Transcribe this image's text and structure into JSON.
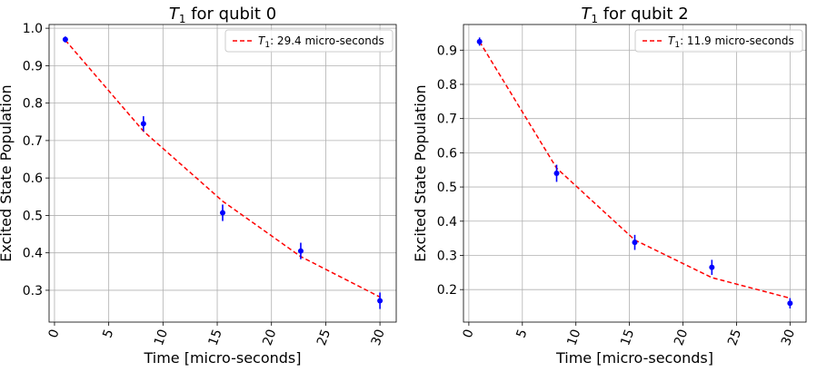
{
  "figure": {
    "background": "#ffffff"
  },
  "chart_data": [
    {
      "type": "scatter",
      "title_symbol": "T",
      "title_subscript": "1",
      "title_rest": " for qubit 0",
      "xlabel": "Time [micro-seconds]",
      "ylabel": "Excited State Population",
      "xlim": [
        -0.5,
        31.5
      ],
      "ylim": [
        0.215,
        1.01
      ],
      "xticks": [
        0,
        5,
        10,
        15,
        20,
        25,
        30
      ],
      "yticks": [
        0.3,
        0.4,
        0.5,
        0.6,
        0.7,
        0.8,
        0.9,
        1.0
      ],
      "ytick_labels": [
        "0.3",
        "0.4",
        "0.5",
        "0.6",
        "0.7",
        "0.8",
        "0.9",
        "1.0"
      ],
      "grid": true,
      "legend_position": "top-right",
      "series": [
        {
          "kind": "errorbar",
          "color": "#0000ff",
          "x": [
            1.0,
            8.2,
            15.5,
            22.7,
            30.0
          ],
          "y": [
            0.97,
            0.745,
            0.507,
            0.405,
            0.272
          ],
          "yerr": [
            0.008,
            0.02,
            0.022,
            0.022,
            0.022
          ]
        },
        {
          "kind": "fit",
          "name_symbol": "T",
          "name_subscript": "1",
          "name_rest": ": 29.4 micro-seconds",
          "color": "#ff0000",
          "dash": "dashed",
          "x": [
            1.0,
            8.2,
            15.5,
            22.7,
            30.0
          ],
          "y": [
            0.968,
            0.725,
            0.538,
            0.39,
            0.282
          ]
        }
      ]
    },
    {
      "type": "scatter",
      "title_symbol": "T",
      "title_subscript": "1",
      "title_rest": " for qubit 2",
      "xlabel": "Time [micro-seconds]",
      "ylabel": "Excited State Population",
      "xlim": [
        -0.5,
        31.5
      ],
      "ylim": [
        0.105,
        0.975
      ],
      "xticks": [
        0,
        5,
        10,
        15,
        20,
        25,
        30
      ],
      "yticks": [
        0.2,
        0.3,
        0.4,
        0.5,
        0.6,
        0.7,
        0.8,
        0.9
      ],
      "ytick_labels": [
        "0.2",
        "0.3",
        "0.4",
        "0.5",
        "0.6",
        "0.7",
        "0.8",
        "0.9"
      ],
      "grid": true,
      "legend_position": "top-right",
      "series": [
        {
          "kind": "errorbar",
          "color": "#0000ff",
          "x": [
            1.0,
            8.2,
            15.5,
            22.7,
            30.0
          ],
          "y": [
            0.925,
            0.54,
            0.338,
            0.265,
            0.16
          ],
          "yerr": [
            0.012,
            0.025,
            0.022,
            0.022,
            0.015
          ]
        },
        {
          "kind": "fit",
          "name_symbol": "T",
          "name_subscript": "1",
          "name_rest": ": 11.9 micro-seconds",
          "color": "#ff0000",
          "dash": "dashed",
          "x": [
            1.0,
            8.2,
            15.5,
            22.7,
            30.0
          ],
          "y": [
            0.925,
            0.555,
            0.345,
            0.235,
            0.175
          ]
        }
      ]
    }
  ]
}
